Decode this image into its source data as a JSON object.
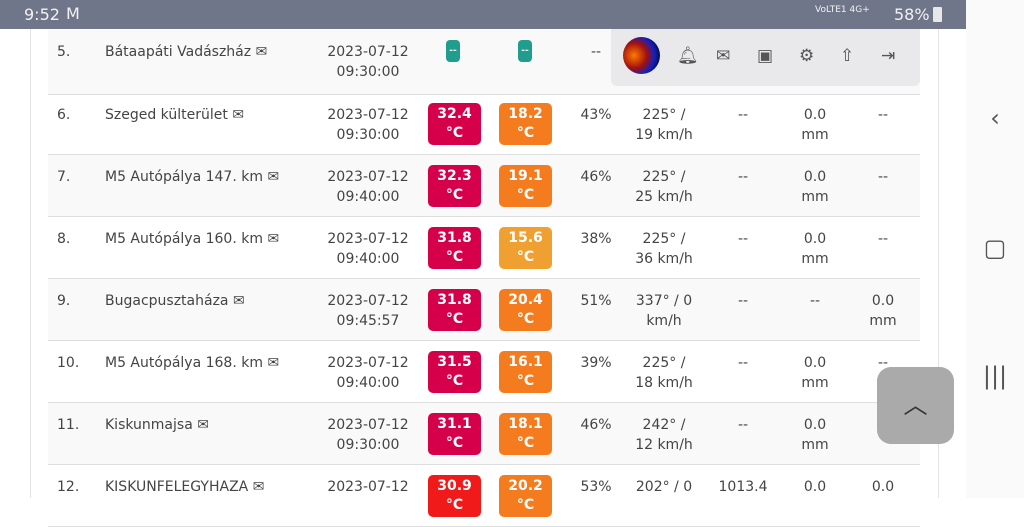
{
  "status_bar": {
    "time": "9:52",
    "mail_icon": "gmail-icon",
    "signal": "VoLTE1 4G+",
    "battery": "58%"
  },
  "colors": {
    "hot": "#d6004a",
    "very_hot": "#f01a1a",
    "warm": "#f57c1e",
    "mild": "#f0a030",
    "none": "#1f9e8e"
  },
  "toolbar": {
    "icons": [
      "avatar",
      "bell-icon",
      "envelope-icon",
      "briefcase-icon",
      "gear-icon",
      "upload-icon",
      "logout-icon"
    ]
  },
  "rows": [
    {
      "idx": "5.",
      "name": "Bátaapáti Vadászház",
      "date": "2023-07-12",
      "time": "09:30:00",
      "t1": "--",
      "t2": "--",
      "hum": "--",
      "wind1": "",
      "wind2": "",
      "pres": "",
      "rain1": "",
      "rain2": "",
      "last1": "",
      "last2": ""
    },
    {
      "idx": "6.",
      "name": "Szeged külterület",
      "date": "2023-07-12",
      "time": "09:30:00",
      "t1": "32.4",
      "t2": "18.2",
      "hum": "43%",
      "wind1": "225° /",
      "wind2": "19 km/h",
      "pres": "--",
      "rain1": "0.0",
      "rain2": "mm",
      "last1": "--",
      "last2": ""
    },
    {
      "idx": "7.",
      "name": "M5 Autópálya 147. km",
      "date": "2023-07-12",
      "time": "09:40:00",
      "t1": "32.3",
      "t2": "19.1",
      "hum": "46%",
      "wind1": "225° /",
      "wind2": "25 km/h",
      "pres": "--",
      "rain1": "0.0",
      "rain2": "mm",
      "last1": "--",
      "last2": ""
    },
    {
      "idx": "8.",
      "name": "M5 Autópálya 160. km",
      "date": "2023-07-12",
      "time": "09:40:00",
      "t1": "31.8",
      "t2": "15.6",
      "hum": "38%",
      "wind1": "225° /",
      "wind2": "36 km/h",
      "pres": "--",
      "rain1": "0.0",
      "rain2": "mm",
      "last1": "--",
      "last2": ""
    },
    {
      "idx": "9.",
      "name": "Bugacpusztaháza",
      "date": "2023-07-12",
      "time": "09:45:57",
      "t1": "31.8",
      "t2": "20.4",
      "hum": "51%",
      "wind1": "337° / 0",
      "wind2": "km/h",
      "pres": "--",
      "rain1": "--",
      "rain2": "",
      "last1": "0.0",
      "last2": "mm"
    },
    {
      "idx": "10.",
      "name": "M5 Autópálya 168. km",
      "date": "2023-07-12",
      "time": "09:40:00",
      "t1": "31.5",
      "t2": "16.1",
      "hum": "39%",
      "wind1": "225° /",
      "wind2": "18 km/h",
      "pres": "--",
      "rain1": "0.0",
      "rain2": "mm",
      "last1": "--",
      "last2": ""
    },
    {
      "idx": "11.",
      "name": "Kiskunmajsa",
      "date": "2023-07-12",
      "time": "09:30:00",
      "t1": "31.1",
      "t2": "18.1",
      "hum": "46%",
      "wind1": "242° /",
      "wind2": "12 km/h",
      "pres": "--",
      "rain1": "0.0",
      "rain2": "mm",
      "last1": "",
      "last2": ""
    },
    {
      "idx": "12.",
      "name": "KISKUNFELEGYHAZA",
      "date": "2023-07-12",
      "time": "",
      "t1": "30.9",
      "t2": "20.2",
      "hum": "53%",
      "wind1": "202° / 0",
      "wind2": "",
      "pres": "1013.4",
      "rain1": "0.0",
      "rain2": "",
      "last1": "0.0",
      "last2": ""
    }
  ],
  "unit": "°C",
  "row_colors": [
    [
      "none",
      "none"
    ],
    [
      "hot",
      "warm"
    ],
    [
      "hot",
      "warm"
    ],
    [
      "hot",
      "mild"
    ],
    [
      "hot",
      "warm"
    ],
    [
      "hot",
      "warm"
    ],
    [
      "hot",
      "warm"
    ],
    [
      "very_hot",
      "warm"
    ]
  ]
}
